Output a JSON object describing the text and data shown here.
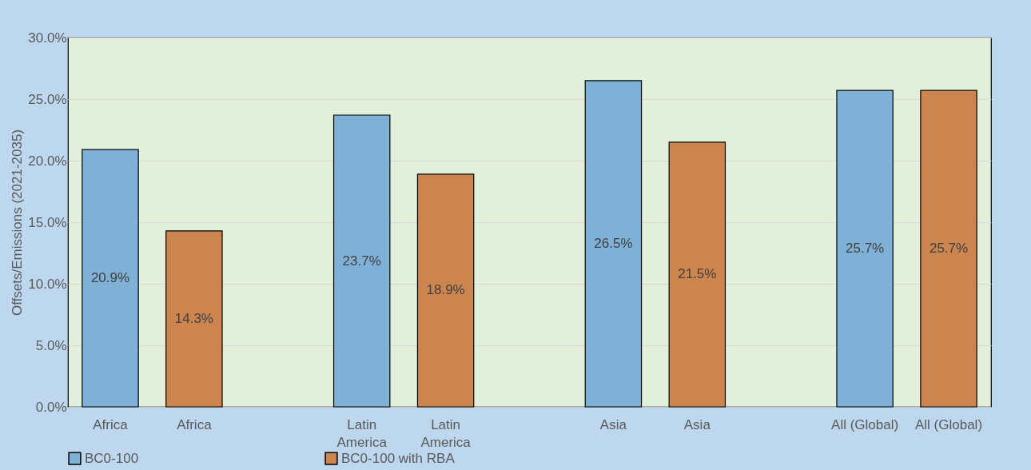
{
  "chart_data": {
    "type": "bar",
    "ylabel": "Offsets/Emissions (2021-2035)",
    "categories": [
      "Africa",
      "Africa",
      null,
      "Latin America",
      "Latin America",
      null,
      "Asia",
      "Asia",
      null,
      "All (Global)",
      "All (Global)"
    ],
    "series": [
      {
        "name": "BC0-100",
        "color": "#7fb1d7",
        "values": [
          20.9,
          null,
          null,
          23.7,
          null,
          null,
          26.5,
          null,
          null,
          25.7,
          null
        ],
        "value_labels": [
          "20.9%",
          null,
          null,
          "23.7%",
          null,
          null,
          "26.5%",
          null,
          null,
          "25.7%",
          null
        ]
      },
      {
        "name": "BC0-100 with RBA",
        "color": "#cd8550",
        "values": [
          null,
          14.3,
          null,
          null,
          18.9,
          null,
          null,
          21.5,
          null,
          null,
          25.7
        ],
        "value_labels": [
          null,
          "14.3%",
          null,
          null,
          "18.9%",
          null,
          null,
          "21.5%",
          null,
          null,
          "25.7%"
        ]
      }
    ],
    "ylim": [
      0,
      30
    ],
    "yticks": [
      {
        "value": 0,
        "label": "0.0%"
      },
      {
        "value": 5,
        "label": "5.0%"
      },
      {
        "value": 10,
        "label": "10.0%"
      },
      {
        "value": 15,
        "label": "15.0%"
      },
      {
        "value": 20,
        "label": "20.0%"
      },
      {
        "value": 25,
        "label": "25.0%"
      },
      {
        "value": 30,
        "label": "30.0%"
      }
    ],
    "grid": "y",
    "legend": "bottom"
  }
}
